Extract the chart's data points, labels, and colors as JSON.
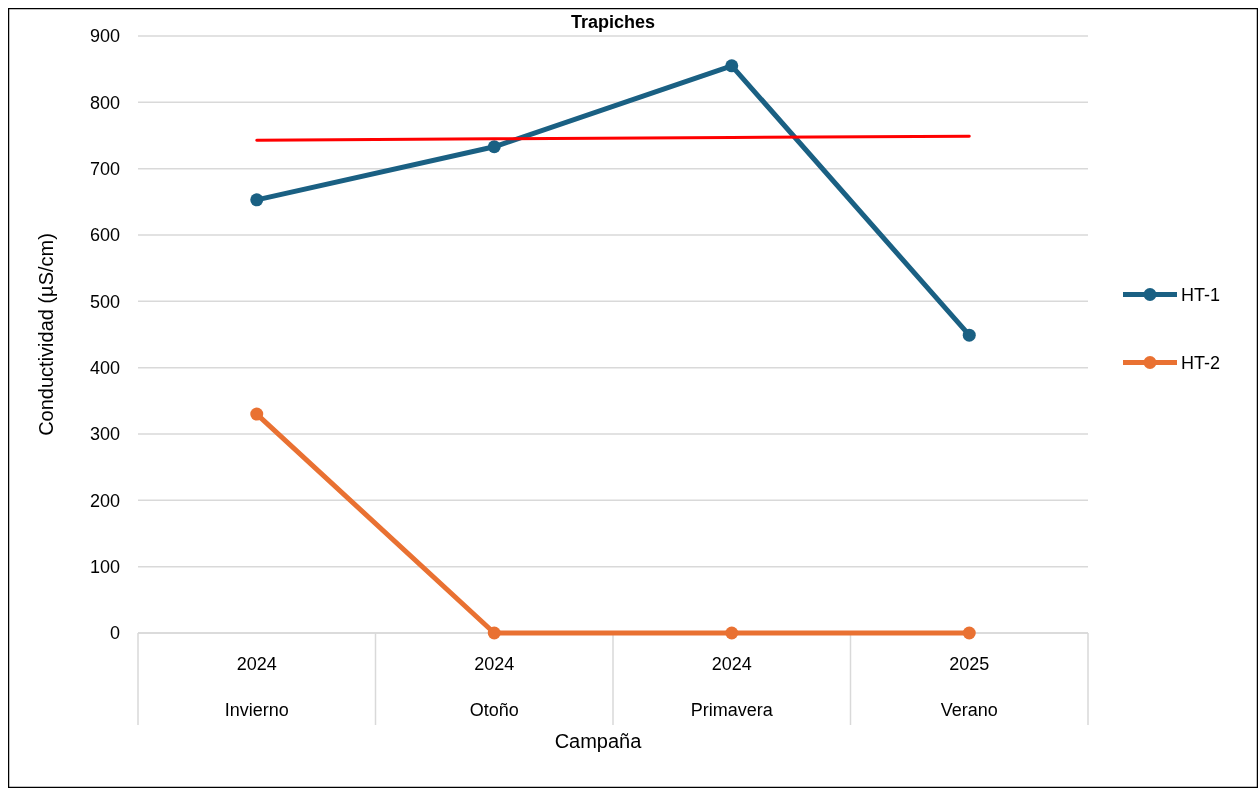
{
  "chart_data": {
    "type": "line",
    "title": "Trapiches",
    "xlabel": "Campaña",
    "ylabel": "Conductividad (µS/cm)",
    "categories": [
      "2024\nInvierno",
      "2024\nOtoño",
      "2024\nPrimavera",
      "2025\nVerano"
    ],
    "series": [
      {
        "name": "HT-1",
        "color": "#1a6083",
        "values": [
          653,
          733,
          855,
          449
        ]
      },
      {
        "name": "HT-2",
        "color": "#e97132",
        "values": [
          330,
          0,
          0,
          0
        ]
      },
      {
        "type": "line",
        "color": "#ff0000",
        "marker": "none",
        "values": [
          743,
          745,
          747,
          749
        ]
      }
    ],
    "ylim": [
      0,
      900
    ],
    "yticks": [
      0,
      100,
      200,
      300,
      400,
      500,
      600,
      700,
      800,
      900
    ],
    "grid": "y",
    "legend": "right",
    "marker": "circle",
    "line_style": "solid"
  }
}
